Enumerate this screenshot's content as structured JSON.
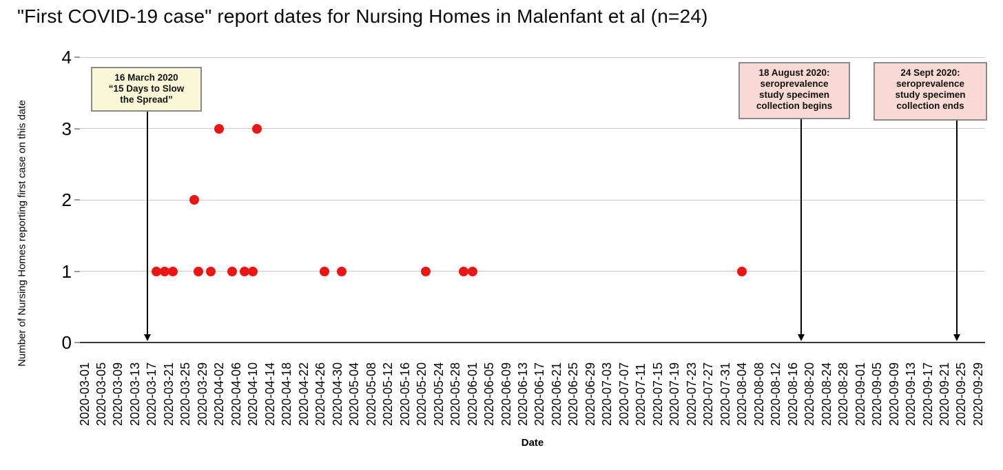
{
  "page": {
    "title": "\"First COVID-19 case\" report dates for Nursing Homes in Malenfant et al (n=24)"
  },
  "chart_data": {
    "type": "scatter",
    "title": "\"First COVID-19 case\" report dates for Nursing Homes in Malenfant et al (n=24)",
    "xlabel": "Date",
    "ylabel": "Number of Nursing Homes reporting first case on this date",
    "ylim": [
      0,
      4
    ],
    "y_ticks": [
      "0",
      "1",
      "2",
      "3",
      "4"
    ],
    "grid": "horizontal",
    "legend": "none",
    "point_color": "#ee1414",
    "x_start": "2020-03-01",
    "x_end": "2020-09-29",
    "x_tick_interval_days": 4,
    "x_ticks": [
      "2020-03-01",
      "2020-03-05",
      "2020-03-09",
      "2020-03-13",
      "2020-03-17",
      "2020-03-21",
      "2020-03-25",
      "2020-03-29",
      "2020-04-02",
      "2020-04-06",
      "2020-04-10",
      "2020-04-14",
      "2020-04-18",
      "2020-04-22",
      "2020-04-26",
      "2020-04-30",
      "2020-05-04",
      "2020-05-08",
      "2020-05-12",
      "2020-05-16",
      "2020-05-20",
      "2020-05-24",
      "2020-05-28",
      "2020-06-01",
      "2020-06-05",
      "2020-06-09",
      "2020-06-13",
      "2020-06-17",
      "2020-06-21",
      "2020-06-25",
      "2020-06-29",
      "2020-07-03",
      "2020-07-07",
      "2020-07-11",
      "2020-07-15",
      "2020-07-19",
      "2020-07-23",
      "2020-07-27",
      "2020-07-31",
      "2020-08-04",
      "2020-08-08",
      "2020-08-12",
      "2020-08-16",
      "2020-08-20",
      "2020-08-24",
      "2020-08-28",
      "2020-09-01",
      "2020-09-05",
      "2020-09-09",
      "2020-09-13",
      "2020-09-17",
      "2020-09-21",
      "2020-09-25",
      "2020-09-29"
    ],
    "points": [
      {
        "date": "2020-03-18",
        "count": 1
      },
      {
        "date": "2020-03-20",
        "count": 1
      },
      {
        "date": "2020-03-22",
        "count": 1
      },
      {
        "date": "2020-03-27",
        "count": 2
      },
      {
        "date": "2020-03-28",
        "count": 1
      },
      {
        "date": "2020-03-31",
        "count": 1
      },
      {
        "date": "2020-04-02",
        "count": 3
      },
      {
        "date": "2020-04-05",
        "count": 1
      },
      {
        "date": "2020-04-08",
        "count": 1
      },
      {
        "date": "2020-04-10",
        "count": 1
      },
      {
        "date": "2020-04-11",
        "count": 3
      },
      {
        "date": "2020-04-27",
        "count": 1
      },
      {
        "date": "2020-05-01",
        "count": 1
      },
      {
        "date": "2020-05-21",
        "count": 1
      },
      {
        "date": "2020-05-30",
        "count": 1
      },
      {
        "date": "2020-06-01",
        "count": 1
      },
      {
        "date": "2020-08-04",
        "count": 1
      }
    ],
    "annotations": [
      {
        "date": "2020-03-16",
        "bg_color": "#faf7d8",
        "lines": [
          "16 March 2020",
          "“15 Days to Slow",
          "the Spread”"
        ]
      },
      {
        "date": "2020-08-18",
        "bg_color": "#f8d9d4",
        "lines": [
          "18 August 2020:",
          "seroprevalence",
          "study specimen",
          "collection begins"
        ]
      },
      {
        "date": "2020-09-24",
        "bg_color": "#f8d9d4",
        "lines": [
          "24 Sept 2020:",
          "seroprevalence",
          "study specimen",
          "collection ends"
        ]
      }
    ]
  }
}
